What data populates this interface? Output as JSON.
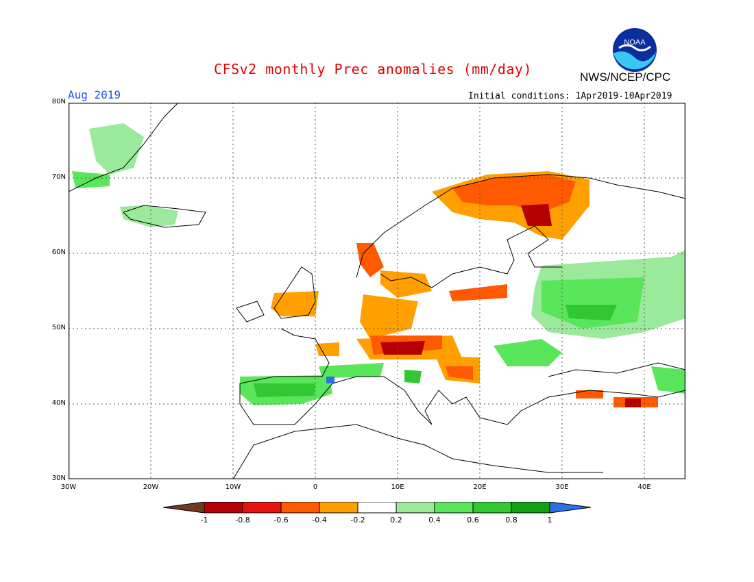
{
  "header": {
    "title": "CFSv2 monthly Prec anomalies (mm/day)",
    "agency": "NWS/NCEP/CPC",
    "month": "Aug 2019",
    "initial_conditions": "Initial conditions: 1Apr2019-10Apr2019",
    "logo_text": "NOAA"
  },
  "map": {
    "lon_ticks": [
      "30W",
      "20W",
      "10W",
      "0",
      "10E",
      "20E",
      "30E",
      "40E"
    ],
    "lat_ticks": [
      "30N",
      "40N",
      "50N",
      "60N",
      "70N",
      "80N"
    ],
    "lon_range": [
      -30,
      45
    ],
    "lat_range": [
      30,
      80
    ],
    "projection": "lat-lon",
    "gridlines": true
  },
  "legend": {
    "labels": [
      "-1",
      "-0.8",
      "-0.6",
      "-0.4",
      "-0.2",
      "0.2",
      "0.4",
      "0.6",
      "0.8",
      "1"
    ],
    "colors": [
      "#6e3b22",
      "#b40000",
      "#e6120d",
      "#ff5a00",
      "#ff9f00",
      "#ffffff",
      "#9be99b",
      "#5ae65a",
      "#32c832",
      "#10a010",
      "#2e6fe6"
    ]
  },
  "anomaly_regions": [
    {
      "name": "Northern Scandinavia",
      "level": "-0.6 to -1"
    },
    {
      "name": "Southern Scandinavia",
      "level": "-0.4 to -0.8"
    },
    {
      "name": "Central Europe / Alps",
      "level": "-0.4 to -0.8"
    },
    {
      "name": "Balkans",
      "level": "-0.4 to -0.8"
    },
    {
      "name": "Eastern Europe",
      "level": "0.2 to 0.6"
    },
    {
      "name": "Iberia",
      "level": "0.2 to 0.8"
    },
    {
      "name": "Turkey",
      "level": "-0.4 to -0.8"
    }
  ]
}
